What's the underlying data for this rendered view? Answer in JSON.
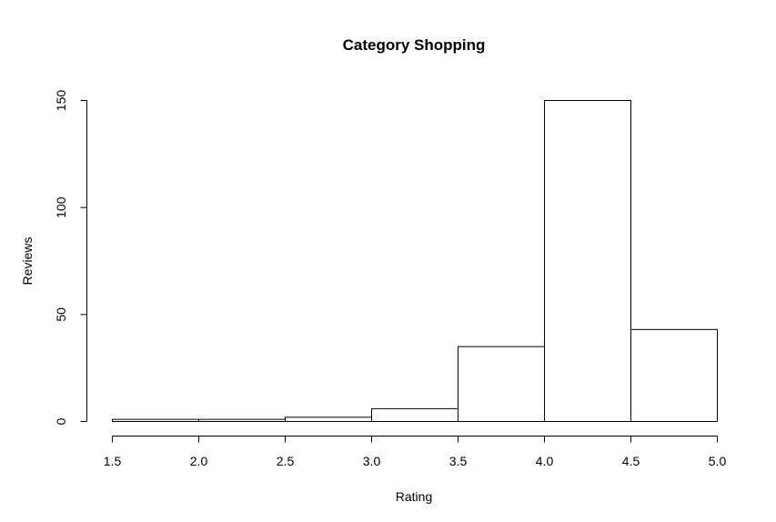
{
  "chart_data": {
    "type": "bar",
    "title": "Category Shopping",
    "xlabel": "Rating",
    "ylabel": "Reviews",
    "bins": [
      {
        "x0": 1.5,
        "x1": 2.0,
        "count": 1
      },
      {
        "x0": 2.0,
        "x1": 2.5,
        "count": 1
      },
      {
        "x0": 2.5,
        "x1": 3.0,
        "count": 2
      },
      {
        "x0": 3.0,
        "x1": 3.5,
        "count": 6
      },
      {
        "x0": 3.5,
        "x1": 4.0,
        "count": 35
      },
      {
        "x0": 4.0,
        "x1": 4.5,
        "count": 150
      },
      {
        "x0": 4.5,
        "x1": 5.0,
        "count": 43
      }
    ],
    "xlim": [
      1.5,
      5.0
    ],
    "ylim": [
      0,
      150
    ],
    "x_ticks": [
      "1.5",
      "2.0",
      "2.5",
      "3.0",
      "3.5",
      "4.0",
      "4.5",
      "5.0"
    ],
    "y_ticks": [
      "0",
      "50",
      "100",
      "150"
    ],
    "grid": false,
    "colors": {
      "bar_fill": "#ffffff",
      "bar_stroke": "#000000"
    }
  }
}
